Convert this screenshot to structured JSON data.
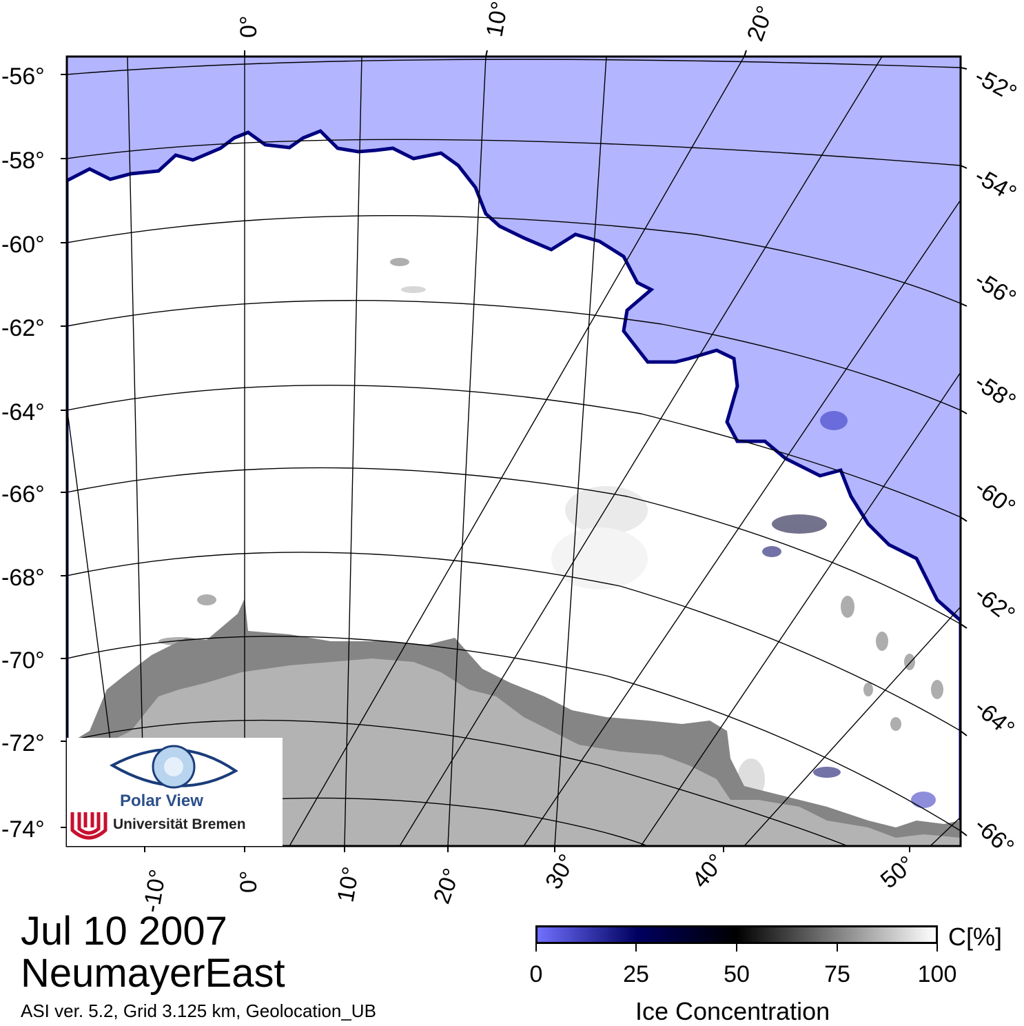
{
  "date": "Jul 10 2007",
  "region": "NeumayerEast",
  "footer": "ASI ver. 5.2,  Grid 3.125 km, Geolocation_UB",
  "colors": {
    "open_water": "#b3b5ff",
    "land": "#b3b3b3",
    "ice_shelf": "#858585",
    "ice": "#ffffff",
    "ice_edge": "#000080"
  },
  "axes": {
    "left_lat_labels": [
      "-56°",
      "-58°",
      "-60°",
      "-62°",
      "-64°",
      "-66°",
      "-68°",
      "-70°",
      "-72°",
      "-74°"
    ],
    "right_lat_labels": [
      "-52°",
      "-54°",
      "-56°",
      "-58°",
      "-60°",
      "-62°",
      "-64°",
      "-66°"
    ],
    "top_lon_labels": [
      "0°",
      "10°",
      "20°"
    ],
    "bottom_lon_labels": [
      "-10°",
      "0°",
      "10°",
      "20°",
      "30°",
      "40°",
      "50°"
    ]
  },
  "colorbar": {
    "title": "Ice Concentration",
    "unit": "C[%]",
    "ticks": [
      "0",
      "25",
      "50",
      "75",
      "100"
    ],
    "stops": [
      "#7070ff",
      "#000060",
      "#000000",
      "#ffffff"
    ]
  },
  "logo": {
    "name": "Polar View",
    "institution": "Universität Bremen",
    "icon": "polar-view-eye-icon"
  }
}
